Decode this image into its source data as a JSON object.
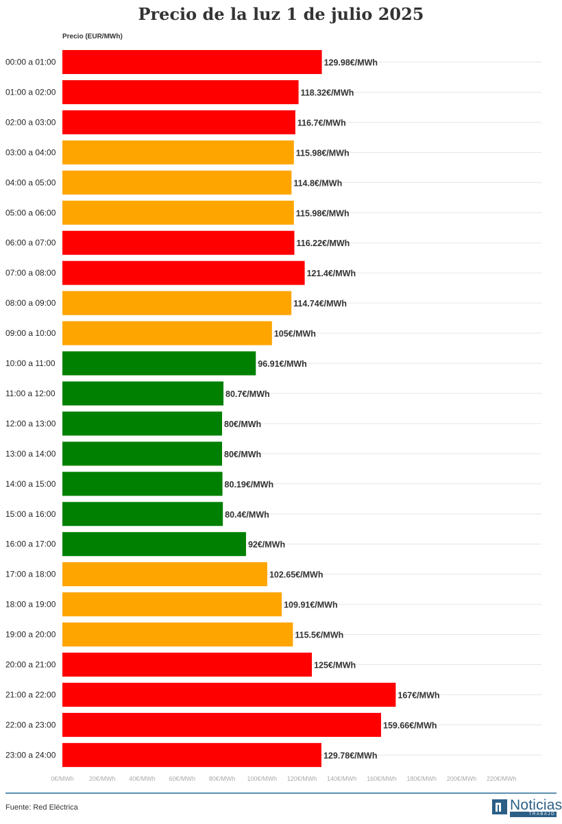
{
  "title": "Precio de la luz 1 de julio 2025",
  "source": "Fuente: Red Eléctrica",
  "logo": {
    "name": "Noticias",
    "sub": "TRABAJO"
  },
  "colors": {
    "high": "#ff0000",
    "mid": "#ffa500",
    "low": "#008000",
    "grid": "#e6e6e6",
    "footer": "#5b8fb0",
    "logo": "#2b5f86"
  },
  "chart_data": {
    "type": "bar",
    "orientation": "horizontal",
    "ylabel": "Precio (EUR/MWh)",
    "xlim": [
      0,
      240
    ],
    "x_ticks": [
      "0€/MWh",
      "20€/MWh",
      "40€/MWh",
      "60€/MWh",
      "80€/MWh",
      "100€/MWh",
      "120€/MWh",
      "140€/MWh",
      "160€/MWh",
      "180€/MWh",
      "200€/MWh",
      "220€/MWh"
    ],
    "grid": true,
    "categories": [
      "00:00 a 01:00",
      "01:00 a 02:00",
      "02:00 a 03:00",
      "03:00 a 04:00",
      "04:00 a 05:00",
      "05:00 a 06:00",
      "06:00 a 07:00",
      "07:00 a 08:00",
      "08:00 a 09:00",
      "09:00 a 10:00",
      "10:00 a 11:00",
      "11:00 a 12:00",
      "12:00 a 13:00",
      "13:00 a 14:00",
      "14:00 a 15:00",
      "15:00 a 16:00",
      "16:00 a 17:00",
      "17:00 a 18:00",
      "18:00 a 19:00",
      "19:00 a 20:00",
      "20:00 a 21:00",
      "21:00 a 22:00",
      "22:00 a 23:00",
      "23:00 a 24:00"
    ],
    "values": [
      129.98,
      118.32,
      116.7,
      115.98,
      114.8,
      115.98,
      116.22,
      121.4,
      114.74,
      105,
      96.91,
      80.7,
      80,
      80,
      80.19,
      80.4,
      92,
      102.65,
      109.91,
      115.5,
      125,
      167,
      159.66,
      129.78
    ],
    "labels": [
      "129.98€/MWh",
      "118.32€/MWh",
      "116.7€/MWh",
      "115.98€/MWh",
      "114.8€/MWh",
      "115.98€/MWh",
      "116.22€/MWh",
      "121.4€/MWh",
      "114.74€/MWh",
      "105€/MWh",
      "96.91€/MWh",
      "80.7€/MWh",
      "80€/MWh",
      "80€/MWh",
      "80.19€/MWh",
      "80.4€/MWh",
      "92€/MWh",
      "102.65€/MWh",
      "109.91€/MWh",
      "115.5€/MWh",
      "125€/MWh",
      "167€/MWh",
      "159.66€/MWh",
      "129.78€/MWh"
    ],
    "bar_colors": [
      "#ff0000",
      "#ff0000",
      "#ff0000",
      "#ffa500",
      "#ffa500",
      "#ffa500",
      "#ff0000",
      "#ff0000",
      "#ffa500",
      "#ffa500",
      "#008000",
      "#008000",
      "#008000",
      "#008000",
      "#008000",
      "#008000",
      "#008000",
      "#ffa500",
      "#ffa500",
      "#ffa500",
      "#ff0000",
      "#ff0000",
      "#ff0000",
      "#ff0000"
    ]
  }
}
